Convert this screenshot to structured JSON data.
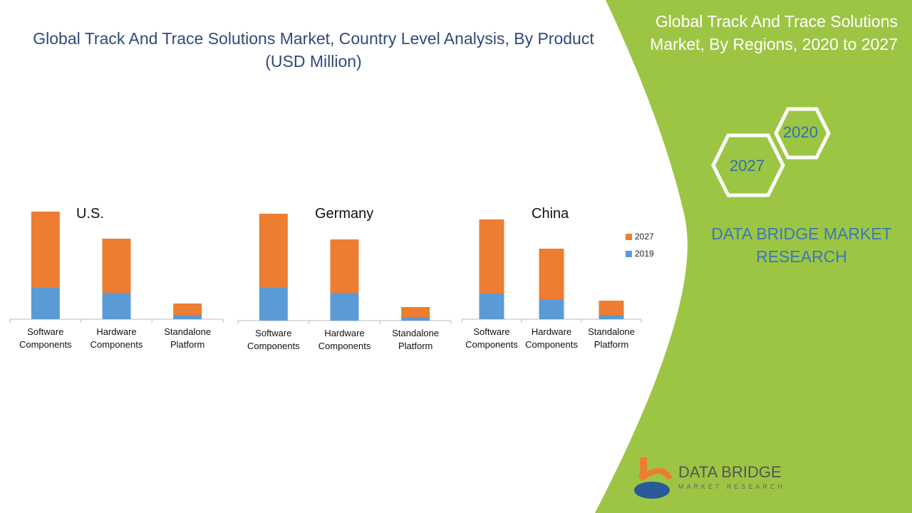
{
  "title": "Global Track And Trace Solutions Market, Country Level Analysis, By Product (USD Million)",
  "side_title": "Global Track And Trace Solutions Market, By Regions, 2020 to 2027",
  "hex_labels": [
    "2020",
    "2027"
  ],
  "brand": "DATA BRIDGE MARKET RESEARCH",
  "logo": {
    "name": "DATA BRIDGE",
    "sub": "MARKET RESEARCH"
  },
  "colors": {
    "y2019": "#5b9bd5",
    "y2027": "#ed7d31",
    "green": "#9dc544"
  },
  "chart_data": [
    {
      "type": "bar",
      "stacked": true,
      "title": "U.S.",
      "categories": [
        "Software Components",
        "Hardware Components",
        "Standalone Platform"
      ],
      "series": [
        {
          "name": "2019",
          "values": [
            44,
            37,
            6
          ]
        },
        {
          "name": "2027",
          "values": [
            107,
            76,
            16
          ]
        }
      ]
    },
    {
      "type": "bar",
      "stacked": true,
      "title": "Germany",
      "categories": [
        "Software Components",
        "Hardware Components",
        "Standalone Platform"
      ],
      "series": [
        {
          "name": "2019",
          "values": [
            46,
            39,
            5
          ]
        },
        {
          "name": "2027",
          "values": [
            104,
            75,
            14
          ]
        }
      ]
    },
    {
      "type": "bar",
      "stacked": true,
      "title": "China",
      "categories": [
        "Software Components",
        "Hardware Components",
        "Standalone Platform"
      ],
      "series": [
        {
          "name": "2019",
          "values": [
            36,
            28,
            6
          ]
        },
        {
          "name": "2027",
          "values": [
            104,
            71,
            20
          ]
        }
      ],
      "legend": {
        "entries": [
          "2027",
          "2019"
        ],
        "placement": "right"
      }
    }
  ]
}
